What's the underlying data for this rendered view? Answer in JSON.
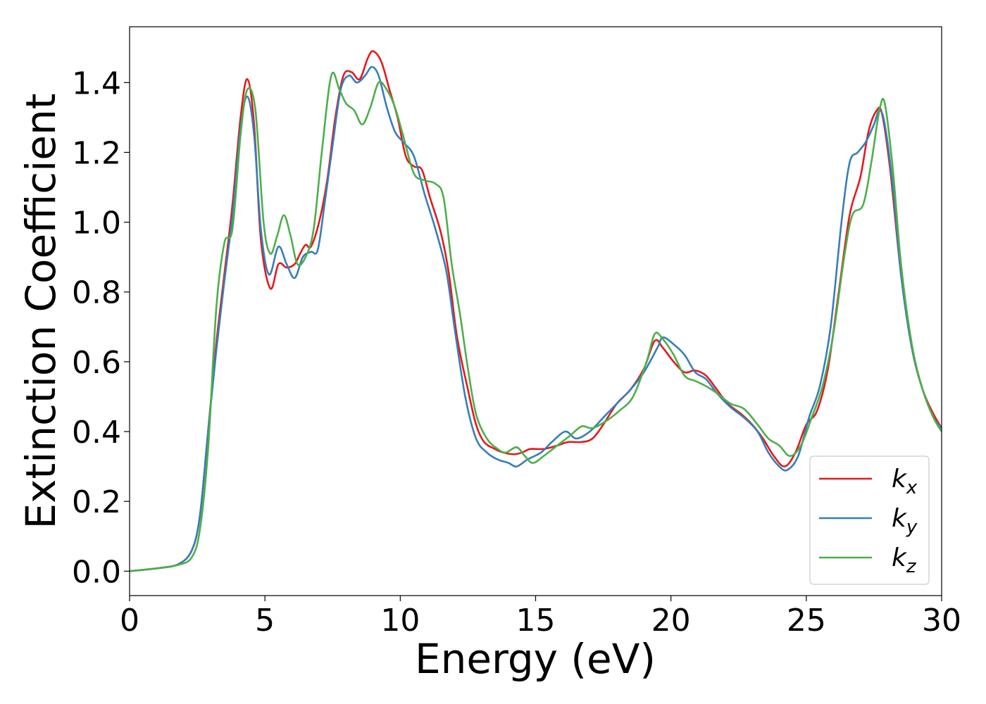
{
  "chart_data": {
    "type": "line",
    "title": "",
    "xlabel": "Energy (eV)",
    "ylabel": "Extinction Coefficient",
    "xlim": [
      0,
      30
    ],
    "ylim": [
      -0.07,
      1.56
    ],
    "xticks": [
      0,
      5,
      10,
      15,
      20,
      25,
      30
    ],
    "xtick_labels": [
      "0",
      "5",
      "10",
      "15",
      "20",
      "25",
      "30"
    ],
    "yticks": [
      0.0,
      0.2,
      0.4,
      0.6,
      0.8,
      1.0,
      1.2,
      1.4
    ],
    "ytick_labels": [
      "0.0",
      "0.2",
      "0.4",
      "0.6",
      "0.8",
      "1.0",
      "1.2",
      "1.4"
    ],
    "grid": false,
    "legend_position": "bottom-right",
    "series": [
      {
        "name": "k_x",
        "legend_main": "k",
        "legend_sub": "x",
        "color": "#e41a1c",
        "points": [
          [
            0,
            0.0
          ],
          [
            1,
            0.008
          ],
          [
            1.8,
            0.02
          ],
          [
            2.3,
            0.06
          ],
          [
            2.6,
            0.16
          ],
          [
            2.9,
            0.4
          ],
          [
            3.2,
            0.65
          ],
          [
            3.5,
            0.85
          ],
          [
            3.8,
            1.05
          ],
          [
            4.1,
            1.3
          ],
          [
            4.35,
            1.41
          ],
          [
            4.6,
            1.28
          ],
          [
            4.85,
            0.95
          ],
          [
            5.2,
            0.81
          ],
          [
            5.5,
            0.88
          ],
          [
            5.8,
            0.87
          ],
          [
            6.1,
            0.88
          ],
          [
            6.3,
            0.91
          ],
          [
            6.5,
            0.935
          ],
          [
            6.7,
            0.93
          ],
          [
            7.0,
            1.0
          ],
          [
            7.3,
            1.12
          ],
          [
            7.6,
            1.3
          ],
          [
            7.9,
            1.42
          ],
          [
            8.2,
            1.43
          ],
          [
            8.5,
            1.41
          ],
          [
            8.8,
            1.47
          ],
          [
            9.0,
            1.49
          ],
          [
            9.3,
            1.46
          ],
          [
            9.6,
            1.38
          ],
          [
            9.9,
            1.3
          ],
          [
            10.2,
            1.19
          ],
          [
            10.5,
            1.16
          ],
          [
            10.8,
            1.15
          ],
          [
            11.1,
            1.07
          ],
          [
            11.5,
            0.97
          ],
          [
            11.8,
            0.85
          ],
          [
            12.1,
            0.67
          ],
          [
            12.5,
            0.52
          ],
          [
            12.8,
            0.42
          ],
          [
            13.1,
            0.37
          ],
          [
            13.5,
            0.35
          ],
          [
            13.8,
            0.34
          ],
          [
            14.2,
            0.335
          ],
          [
            14.5,
            0.34
          ],
          [
            14.8,
            0.35
          ],
          [
            15.3,
            0.35
          ],
          [
            15.8,
            0.36
          ],
          [
            16.2,
            0.37
          ],
          [
            16.7,
            0.37
          ],
          [
            17.1,
            0.38
          ],
          [
            17.5,
            0.42
          ],
          [
            18.0,
            0.48
          ],
          [
            18.5,
            0.52
          ],
          [
            19.0,
            0.58
          ],
          [
            19.4,
            0.66
          ],
          [
            19.7,
            0.64
          ],
          [
            20.1,
            0.6
          ],
          [
            20.5,
            0.57
          ],
          [
            20.9,
            0.575
          ],
          [
            21.3,
            0.56
          ],
          [
            21.7,
            0.52
          ],
          [
            22.1,
            0.48
          ],
          [
            22.6,
            0.45
          ],
          [
            23.0,
            0.42
          ],
          [
            23.4,
            0.38
          ],
          [
            23.8,
            0.33
          ],
          [
            24.2,
            0.3
          ],
          [
            24.6,
            0.34
          ],
          [
            25.0,
            0.42
          ],
          [
            25.4,
            0.46
          ],
          [
            25.8,
            0.58
          ],
          [
            26.2,
            0.8
          ],
          [
            26.6,
            1.02
          ],
          [
            27.0,
            1.13
          ],
          [
            27.3,
            1.26
          ],
          [
            27.6,
            1.32
          ],
          [
            27.8,
            1.31
          ],
          [
            28.1,
            1.15
          ],
          [
            28.5,
            0.85
          ],
          [
            28.9,
            0.64
          ],
          [
            29.3,
            0.52
          ],
          [
            29.7,
            0.45
          ],
          [
            30,
            0.41
          ]
        ]
      },
      {
        "name": "k_y",
        "legend_main": "k",
        "legend_sub": "y",
        "color": "#377eb8",
        "points": [
          [
            0,
            0.0
          ],
          [
            1,
            0.008
          ],
          [
            1.8,
            0.02
          ],
          [
            2.3,
            0.06
          ],
          [
            2.6,
            0.16
          ],
          [
            2.9,
            0.4
          ],
          [
            3.2,
            0.63
          ],
          [
            3.5,
            0.83
          ],
          [
            3.8,
            1.02
          ],
          [
            4.1,
            1.27
          ],
          [
            4.35,
            1.36
          ],
          [
            4.6,
            1.25
          ],
          [
            4.85,
            0.98
          ],
          [
            5.15,
            0.85
          ],
          [
            5.5,
            0.93
          ],
          [
            5.8,
            0.88
          ],
          [
            6.1,
            0.84
          ],
          [
            6.4,
            0.9
          ],
          [
            6.7,
            0.915
          ],
          [
            6.95,
            0.92
          ],
          [
            7.2,
            1.05
          ],
          [
            7.5,
            1.22
          ],
          [
            7.8,
            1.38
          ],
          [
            8.1,
            1.42
          ],
          [
            8.4,
            1.4
          ],
          [
            8.7,
            1.42
          ],
          [
            8.95,
            1.445
          ],
          [
            9.2,
            1.42
          ],
          [
            9.5,
            1.33
          ],
          [
            9.8,
            1.26
          ],
          [
            10.1,
            1.23
          ],
          [
            10.5,
            1.19
          ],
          [
            10.9,
            1.08
          ],
          [
            11.3,
            0.98
          ],
          [
            11.7,
            0.86
          ],
          [
            12.0,
            0.7
          ],
          [
            12.4,
            0.5
          ],
          [
            12.8,
            0.38
          ],
          [
            13.2,
            0.34
          ],
          [
            13.6,
            0.32
          ],
          [
            14.0,
            0.31
          ],
          [
            14.3,
            0.3
          ],
          [
            14.7,
            0.32
          ],
          [
            15.2,
            0.34
          ],
          [
            15.6,
            0.37
          ],
          [
            16.1,
            0.4
          ],
          [
            16.5,
            0.38
          ],
          [
            17.0,
            0.4
          ],
          [
            17.5,
            0.44
          ],
          [
            18.0,
            0.48
          ],
          [
            18.5,
            0.52
          ],
          [
            19.0,
            0.57
          ],
          [
            19.5,
            0.64
          ],
          [
            19.7,
            0.67
          ],
          [
            20.1,
            0.65
          ],
          [
            20.5,
            0.62
          ],
          [
            20.9,
            0.57
          ],
          [
            21.3,
            0.55
          ],
          [
            21.7,
            0.51
          ],
          [
            22.2,
            0.47
          ],
          [
            22.7,
            0.44
          ],
          [
            23.2,
            0.4
          ],
          [
            23.6,
            0.34
          ],
          [
            24.0,
            0.3
          ],
          [
            24.3,
            0.29
          ],
          [
            24.7,
            0.33
          ],
          [
            25.1,
            0.44
          ],
          [
            25.5,
            0.53
          ],
          [
            25.9,
            0.7
          ],
          [
            26.3,
            1.0
          ],
          [
            26.6,
            1.17
          ],
          [
            26.9,
            1.2
          ],
          [
            27.2,
            1.23
          ],
          [
            27.5,
            1.28
          ],
          [
            27.7,
            1.32
          ],
          [
            27.9,
            1.28
          ],
          [
            28.2,
            1.1
          ],
          [
            28.5,
            0.85
          ],
          [
            28.9,
            0.64
          ],
          [
            29.3,
            0.52
          ],
          [
            29.7,
            0.44
          ],
          [
            30,
            0.41
          ]
        ]
      },
      {
        "name": "k_z",
        "legend_main": "k",
        "legend_sub": "z",
        "color": "#4daf4a",
        "points": [
          [
            0,
            0.0
          ],
          [
            1,
            0.008
          ],
          [
            1.8,
            0.018
          ],
          [
            2.3,
            0.04
          ],
          [
            2.6,
            0.12
          ],
          [
            2.9,
            0.35
          ],
          [
            3.2,
            0.75
          ],
          [
            3.5,
            0.94
          ],
          [
            3.8,
            0.98
          ],
          [
            4.1,
            1.25
          ],
          [
            4.35,
            1.38
          ],
          [
            4.65,
            1.32
          ],
          [
            4.95,
            1.0
          ],
          [
            5.2,
            0.91
          ],
          [
            5.45,
            0.96
          ],
          [
            5.7,
            1.02
          ],
          [
            5.95,
            0.96
          ],
          [
            6.2,
            0.88
          ],
          [
            6.5,
            0.9
          ],
          [
            6.8,
            0.98
          ],
          [
            7.1,
            1.2
          ],
          [
            7.45,
            1.42
          ],
          [
            7.75,
            1.38
          ],
          [
            8.0,
            1.34
          ],
          [
            8.3,
            1.32
          ],
          [
            8.6,
            1.28
          ],
          [
            8.9,
            1.33
          ],
          [
            9.2,
            1.4
          ],
          [
            9.5,
            1.38
          ],
          [
            9.8,
            1.33
          ],
          [
            10.1,
            1.25
          ],
          [
            10.5,
            1.14
          ],
          [
            10.9,
            1.12
          ],
          [
            11.3,
            1.11
          ],
          [
            11.6,
            1.07
          ],
          [
            11.9,
            0.88
          ],
          [
            12.2,
            0.74
          ],
          [
            12.5,
            0.58
          ],
          [
            12.8,
            0.45
          ],
          [
            13.2,
            0.38
          ],
          [
            13.6,
            0.35
          ],
          [
            13.9,
            0.34
          ],
          [
            14.3,
            0.355
          ],
          [
            14.6,
            0.33
          ],
          [
            14.9,
            0.31
          ],
          [
            15.3,
            0.33
          ],
          [
            15.8,
            0.36
          ],
          [
            16.3,
            0.39
          ],
          [
            16.7,
            0.415
          ],
          [
            17.1,
            0.41
          ],
          [
            17.6,
            0.43
          ],
          [
            18.1,
            0.46
          ],
          [
            18.6,
            0.5
          ],
          [
            19.1,
            0.6
          ],
          [
            19.4,
            0.68
          ],
          [
            19.7,
            0.665
          ],
          [
            20.1,
            0.62
          ],
          [
            20.5,
            0.56
          ],
          [
            20.9,
            0.545
          ],
          [
            21.3,
            0.53
          ],
          [
            21.7,
            0.51
          ],
          [
            22.2,
            0.48
          ],
          [
            22.7,
            0.465
          ],
          [
            23.2,
            0.42
          ],
          [
            23.6,
            0.38
          ],
          [
            24.0,
            0.36
          ],
          [
            24.4,
            0.33
          ],
          [
            24.8,
            0.36
          ],
          [
            25.2,
            0.44
          ],
          [
            25.6,
            0.53
          ],
          [
            26.0,
            0.68
          ],
          [
            26.4,
            0.9
          ],
          [
            26.7,
            1.02
          ],
          [
            27.1,
            1.05
          ],
          [
            27.4,
            1.17
          ],
          [
            27.7,
            1.32
          ],
          [
            27.9,
            1.34
          ],
          [
            28.2,
            1.15
          ],
          [
            28.5,
            0.88
          ],
          [
            28.9,
            0.65
          ],
          [
            29.3,
            0.52
          ],
          [
            29.7,
            0.44
          ],
          [
            30,
            0.4
          ]
        ]
      }
    ]
  }
}
